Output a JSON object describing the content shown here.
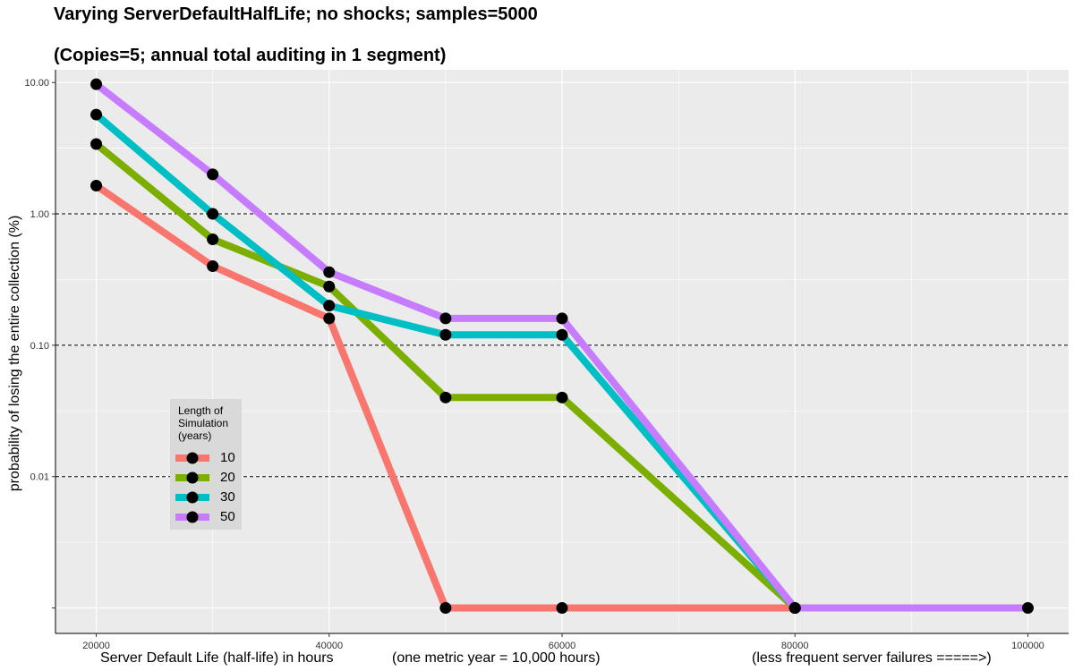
{
  "title": "Varying ServerDefaultHalfLife; no shocks; samples=5000",
  "subtitle": "(Copies=5; annual total auditing in 1 segment)",
  "chart_data": {
    "type": "line",
    "scale_y": "log",
    "x": [
      20000,
      30000,
      40000,
      50000,
      60000,
      80000,
      100000
    ],
    "x_ticks": [
      "20000",
      "40000",
      "60000",
      "80000",
      "100000"
    ],
    "x_tick_values": [
      20000,
      40000,
      60000,
      80000,
      100000
    ],
    "xlabel_parts": [
      "Server Default Life (half-life) in hours",
      "(one metric year = 10,000 hours)",
      "(less frequent server failures =====>)"
    ],
    "ylabel": "probability of losing the entire collection (%)",
    "y_ticks": [
      "10.00",
      "1.00",
      "0.10",
      "0.01",
      ""
    ],
    "y_tick_values": [
      10,
      1,
      0.1,
      0.01,
      0.001
    ],
    "y_dashed_lines": [
      1,
      0.1,
      0.01
    ],
    "xlim": [
      16500,
      103500
    ],
    "ylim": [
      0.00064,
      12.5
    ],
    "legend": {
      "title_lines": [
        "Length of",
        "Simulation",
        "(years)"
      ],
      "placement": "left-lower"
    },
    "series": [
      {
        "name": "10",
        "color": "#F8766D",
        "points": [
          [
            20000,
            1.64
          ],
          [
            30000,
            0.4
          ],
          [
            40000,
            0.16
          ],
          [
            50000,
            0.001
          ],
          [
            60000,
            0.001
          ],
          [
            80000,
            0.001
          ]
        ]
      },
      {
        "name": "20",
        "color": "#7CAE00",
        "points": [
          [
            20000,
            3.4
          ],
          [
            30000,
            0.64
          ],
          [
            40000,
            0.28
          ],
          [
            50000,
            0.04
          ],
          [
            60000,
            0.04
          ],
          [
            80000,
            0.001
          ]
        ]
      },
      {
        "name": "30",
        "color": "#00BFC4",
        "points": [
          [
            20000,
            5.7
          ],
          [
            30000,
            1.0
          ],
          [
            40000,
            0.2
          ],
          [
            50000,
            0.12
          ],
          [
            60000,
            0.12
          ],
          [
            80000,
            0.001
          ]
        ]
      },
      {
        "name": "50",
        "color": "#C77CFF",
        "points": [
          [
            20000,
            9.7
          ],
          [
            30000,
            2.0
          ],
          [
            40000,
            0.36
          ],
          [
            50000,
            0.16
          ],
          [
            60000,
            0.16
          ],
          [
            80000,
            0.001
          ],
          [
            100000,
            0.001
          ]
        ]
      }
    ]
  }
}
